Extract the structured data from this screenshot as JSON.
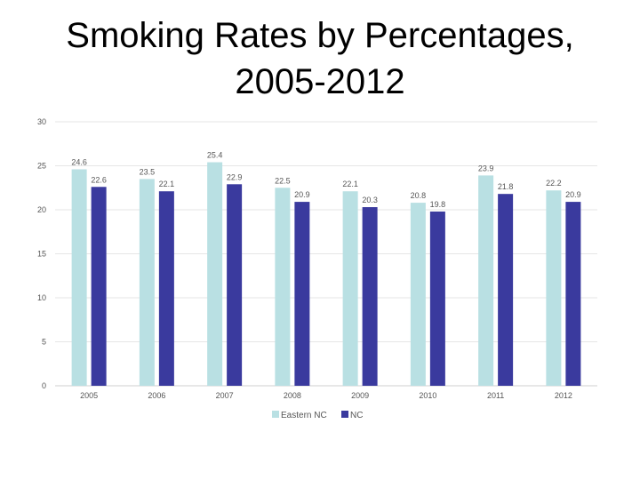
{
  "slide": {
    "title_line1": "Smoking Rates by Percentages,",
    "title_line2": "2005-2012"
  },
  "chart_data": {
    "type": "bar",
    "title": "Smoking Rates by Percentages, 2005-2012",
    "xlabel": "",
    "ylabel": "",
    "categories": [
      "2005",
      "2006",
      "2007",
      "2008",
      "2009",
      "2010",
      "2011",
      "2012"
    ],
    "series": [
      {
        "name": "Eastern NC",
        "color": "#b9e0e3",
        "values": [
          24.6,
          23.5,
          25.4,
          22.5,
          22.1,
          20.8,
          23.9,
          22.2
        ]
      },
      {
        "name": "NC",
        "color": "#3a3a9e",
        "values": [
          22.6,
          22.1,
          22.9,
          20.9,
          20.3,
          19.8,
          21.8,
          20.9
        ]
      }
    ],
    "ylim": [
      0,
      30
    ],
    "yticks": [
      0,
      5,
      10,
      15,
      20,
      25,
      30
    ],
    "grid": true,
    "legend_position": "bottom"
  }
}
